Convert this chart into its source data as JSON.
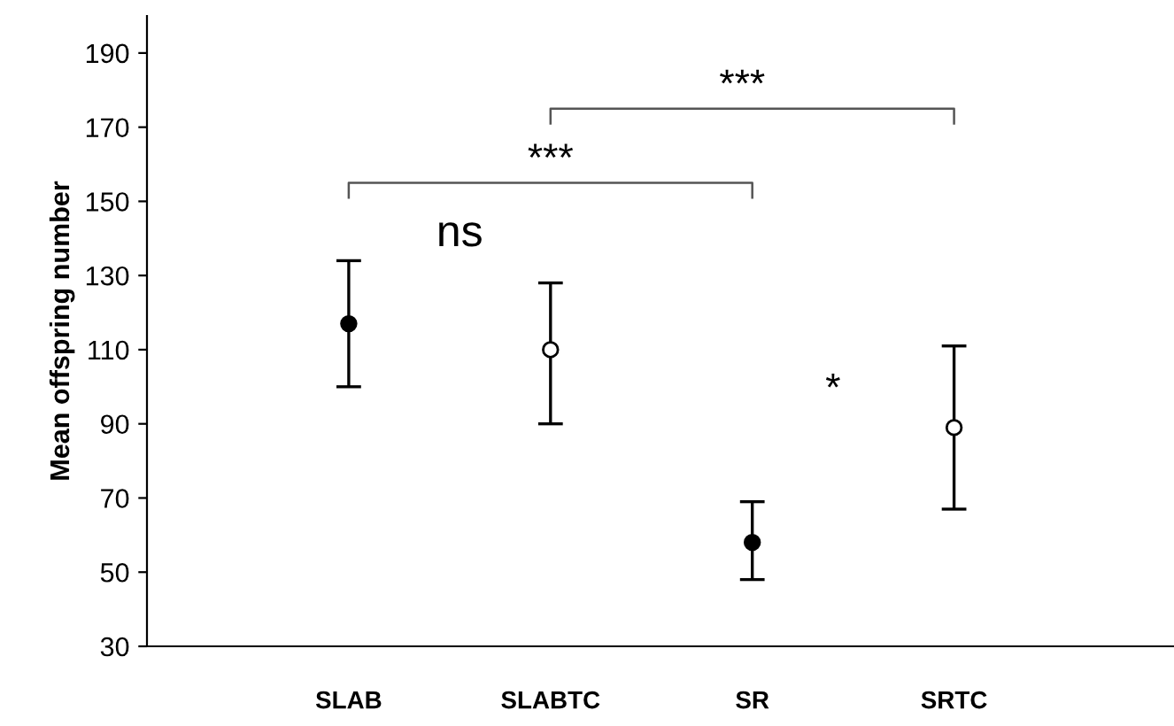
{
  "chart_data": {
    "type": "scatter",
    "ylabel": "Mean offspring number",
    "categories": [
      "SLAB",
      "SLABTC",
      "SR",
      "SRTC"
    ],
    "series": [
      {
        "color": "#000000",
        "values": [
          117,
          null,
          58,
          null
        ],
        "errors": [
          [
            100,
            134
          ],
          null,
          [
            48,
            69
          ],
          null
        ]
      },
      {
        "color": "#ffffff",
        "values": [
          null,
          110,
          null,
          89
        ],
        "errors": [
          null,
          [
            90,
            128
          ],
          null,
          [
            67,
            111
          ]
        ]
      }
    ],
    "ylim": [
      30,
      200
    ],
    "yticks": [
      30,
      50,
      70,
      90,
      110,
      130,
      150,
      170,
      190
    ],
    "marker": "circle",
    "grid": false,
    "legend": false,
    "annotations": [
      "ns",
      "***",
      "***",
      "*"
    ]
  }
}
